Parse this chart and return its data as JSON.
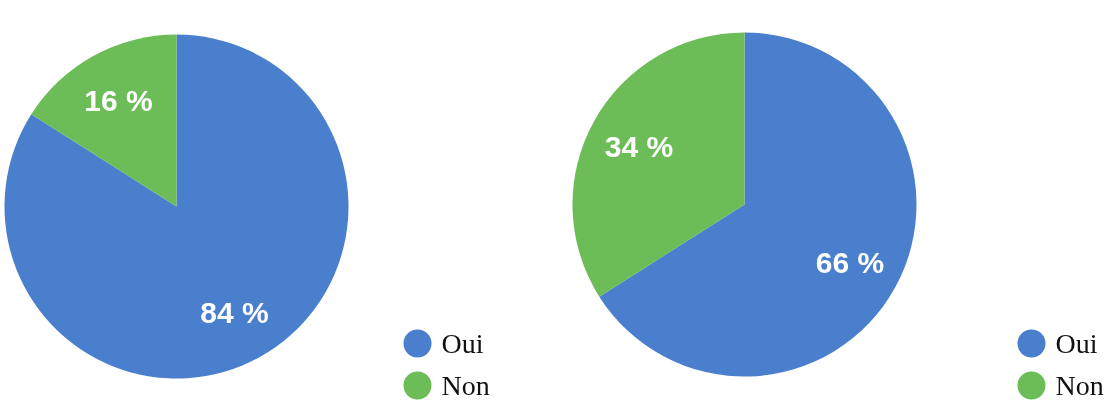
{
  "chart_data": [
    {
      "type": "pie",
      "categories": [
        "Oui",
        "Non"
      ],
      "values": [
        84,
        16
      ],
      "colors": [
        "#4a7fcd",
        "#6cbd58"
      ],
      "value_labels": [
        "84 %",
        "16 %"
      ],
      "legend": "bottom right"
    },
    {
      "type": "pie",
      "categories": [
        "Oui",
        "Non"
      ],
      "values": [
        66,
        34
      ],
      "colors": [
        "#4a7fcd",
        "#6cbd58"
      ],
      "value_labels": [
        "66 %",
        "34 %"
      ],
      "legend": "bottom right"
    }
  ]
}
